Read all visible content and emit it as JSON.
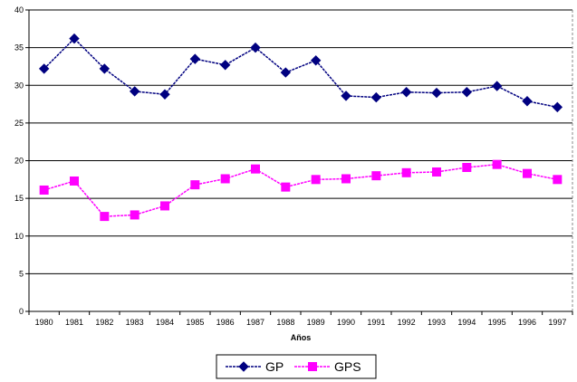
{
  "chart_data": {
    "type": "line",
    "title": "",
    "xlabel": "Años",
    "ylabel": "",
    "categories": [
      "1980",
      "1981",
      "1982",
      "1983",
      "1984",
      "1985",
      "1986",
      "1987",
      "1988",
      "1989",
      "1990",
      "1991",
      "1992",
      "1993",
      "1994",
      "1995",
      "1996",
      "1997"
    ],
    "ylim": [
      0,
      40
    ],
    "yticks": [
      0,
      5,
      10,
      15,
      20,
      25,
      30,
      35,
      40
    ],
    "grid": "horizontal",
    "legend_position": "bottom",
    "series": [
      {
        "name": "GP",
        "color": "#000080",
        "marker": "diamond",
        "values": [
          32.2,
          36.2,
          32.2,
          29.2,
          28.8,
          33.5,
          32.7,
          35.0,
          31.7,
          33.3,
          28.6,
          28.4,
          29.1,
          29.0,
          29.1,
          29.9,
          27.9,
          27.1
        ]
      },
      {
        "name": "GPS",
        "color": "#FF00FF",
        "marker": "square",
        "values": [
          16.1,
          17.3,
          12.6,
          12.8,
          14.0,
          16.8,
          17.6,
          18.9,
          16.5,
          17.5,
          17.6,
          18.0,
          18.4,
          18.5,
          19.1,
          19.5,
          18.3,
          17.5
        ]
      }
    ]
  }
}
